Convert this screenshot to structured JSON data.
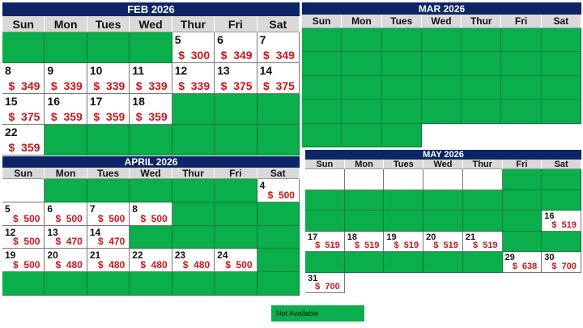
{
  "colors": {
    "not_available": "#0aae4b",
    "title_bg": "#0d2467",
    "price": "#c8161d"
  },
  "weekdays": [
    "Sun",
    "Mon",
    "Tues",
    "Wed",
    "Thur",
    "Fri",
    "Sat"
  ],
  "months": {
    "feb": {
      "title": "FEB 2026",
      "rows": [
        [
          "na",
          "na",
          "na",
          "na",
          {
            "d": "5",
            "p": "$  300"
          },
          {
            "d": "6",
            "p": "$  349"
          },
          {
            "d": "7",
            "p": "$  349"
          }
        ],
        [
          {
            "d": "8",
            "p": "$  349"
          },
          {
            "d": "9",
            "p": "$  339"
          },
          {
            "d": "10",
            "p": "$  339"
          },
          {
            "d": "11",
            "p": "$  339"
          },
          {
            "d": "12",
            "p": "$  339"
          },
          {
            "d": "13",
            "p": "$  375"
          },
          {
            "d": "14",
            "p": "$  375"
          }
        ],
        [
          {
            "d": "15",
            "p": "$  375"
          },
          {
            "d": "16",
            "p": "$  359"
          },
          {
            "d": "17",
            "p": "$  359"
          },
          {
            "d": "18",
            "p": "$  359"
          },
          "na",
          "na",
          "na"
        ],
        [
          {
            "d": "22",
            "p": "$  359"
          },
          "na",
          "na",
          "na",
          "na",
          "na",
          "na"
        ]
      ]
    },
    "mar": {
      "title": "MAR 2026",
      "rows": [
        [
          "na",
          "na",
          "na",
          "na",
          "na",
          "na",
          "na"
        ],
        [
          "na",
          "na",
          "na",
          "na",
          "na",
          "na",
          "na"
        ],
        [
          "na",
          "na",
          "na",
          "na",
          "na",
          "na",
          "na"
        ],
        [
          "na",
          "na",
          "na",
          "na",
          "na",
          "na",
          "na"
        ],
        [
          "na",
          "na",
          "na",
          "empty",
          "empty",
          "empty",
          "empty"
        ]
      ]
    },
    "apr": {
      "title": "APRIL 2026",
      "rows": [
        [
          "blank",
          "na",
          "na",
          "na",
          "na",
          "na",
          {
            "d": "4",
            "p": "$  500"
          }
        ],
        [
          {
            "d": "5",
            "p": "$  500"
          },
          {
            "d": "6",
            "p": "$  500"
          },
          {
            "d": "7",
            "p": "$  500"
          },
          {
            "d": "8",
            "p": "$  500"
          },
          "na",
          "na",
          "na"
        ],
        [
          {
            "d": "12",
            "p": "$  500"
          },
          {
            "d": "13",
            "p": "$  470"
          },
          {
            "d": "14",
            "p": "$  470"
          },
          "na",
          "na",
          "na",
          "na"
        ],
        [
          {
            "d": "19",
            "p": "$  500"
          },
          {
            "d": "20",
            "p": "$  480"
          },
          {
            "d": "21",
            "p": "$  480"
          },
          {
            "d": "22",
            "p": "$  480"
          },
          {
            "d": "23",
            "p": "$  480"
          },
          {
            "d": "24",
            "p": "$  500"
          },
          "na"
        ],
        [
          "na",
          "na",
          "na",
          "na",
          "na",
          "na",
          "na"
        ]
      ]
    },
    "may": {
      "title": "MAY 2026",
      "rows": [
        [
          "blank",
          "blank",
          "blank",
          "blank",
          "blank",
          "na",
          "na"
        ],
        [
          "na",
          "na",
          "na",
          "na",
          "na",
          "na",
          "na"
        ],
        [
          "na",
          "na",
          "na",
          "na",
          "na",
          "na",
          {
            "d": "16",
            "p": "$  519"
          }
        ],
        [
          {
            "d": "17",
            "p": "$  519"
          },
          {
            "d": "18",
            "p": "$  519"
          },
          {
            "d": "19",
            "p": "$  519"
          },
          {
            "d": "20",
            "p": "$  519"
          },
          {
            "d": "21",
            "p": "$  519"
          },
          "na",
          "na"
        ],
        [
          "na",
          "na",
          "na",
          "na",
          "na",
          {
            "d": "29",
            "p": "$  638"
          },
          {
            "d": "30",
            "p": "$  700"
          }
        ],
        [
          {
            "d": "31",
            "p": "$  700"
          },
          "empty",
          "empty",
          "empty",
          "empty",
          "empty",
          "empty"
        ]
      ]
    }
  },
  "legend": {
    "label": "Not Available"
  }
}
